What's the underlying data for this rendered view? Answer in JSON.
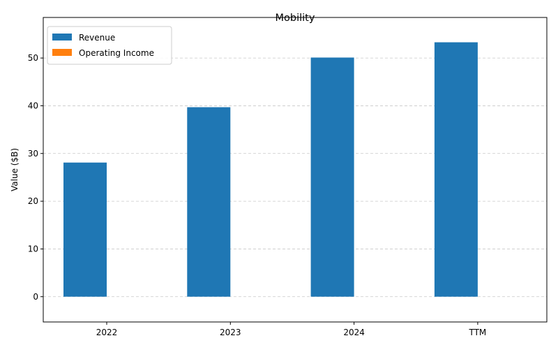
{
  "chart_data": {
    "type": "bar",
    "title": "Mobility",
    "xlabel": "",
    "ylabel": "Value ($B)",
    "categories": [
      "2022",
      "2023",
      "2024",
      "TTM"
    ],
    "series": [
      {
        "name": "Revenue",
        "values": [
          28.1,
          39.7,
          50.1,
          53.3
        ],
        "color": "#1f77b4"
      },
      {
        "name": "Operating Income",
        "values": [
          0,
          0,
          0,
          0
        ],
        "color": "#ff7f0e"
      }
    ],
    "ylim": [
      -5.3,
      58.5
    ],
    "yticks": [
      0,
      10,
      20,
      30,
      40,
      50
    ],
    "grid": true,
    "legend_position": "top-left"
  }
}
